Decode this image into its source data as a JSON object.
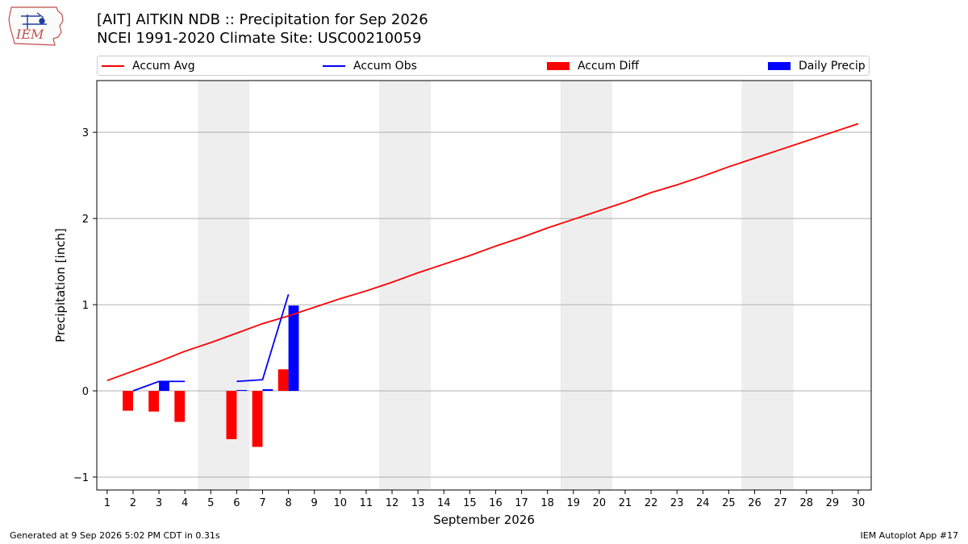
{
  "header": {
    "logo_text": "IEM",
    "title_line1": "[AIT] AITKIN NDB :: Precipitation for Sep 2026",
    "title_line2": "NCEI 1991-2020 Climate Site: USC00210059"
  },
  "footer": {
    "left": "Generated at 9 Sep 2026 5:02 PM CDT in 0.31s",
    "right": "IEM Autoplot App #17"
  },
  "colors": {
    "avg": "#ff0000",
    "obs": "#0000ff",
    "diff": "#ff0000",
    "daily": "#0000ff",
    "weekend_shade": "#eeeeee",
    "grid": "#b0b0b0"
  },
  "chart_data": {
    "type": "bar",
    "xlabel": "September 2026",
    "ylabel": "Precipitation [inch]",
    "xlim": [
      0.6,
      30.5
    ],
    "ylim": [
      -1.15,
      3.6
    ],
    "yticks": [
      -1,
      0,
      1,
      2,
      3
    ],
    "grid": "horizontal",
    "legend_position": "top",
    "days": [
      1,
      2,
      3,
      4,
      5,
      6,
      7,
      8,
      9,
      10,
      11,
      12,
      13,
      14,
      15,
      16,
      17,
      18,
      19,
      20,
      21,
      22,
      23,
      24,
      25,
      26,
      27,
      28,
      29,
      30
    ],
    "weekend_ranges": [
      [
        4.5,
        6.5
      ],
      [
        11.5,
        13.5
      ],
      [
        18.5,
        20.5
      ],
      [
        25.5,
        27.5
      ]
    ],
    "series": [
      {
        "name": "Accum Avg",
        "kind": "line",
        "color": "#ff0000",
        "x": [
          1,
          2,
          3,
          4,
          5,
          6,
          7,
          8,
          9,
          10,
          11,
          12,
          13,
          14,
          15,
          16,
          17,
          18,
          19,
          20,
          21,
          22,
          23,
          24,
          25,
          26,
          27,
          28,
          29,
          30
        ],
        "values": [
          0.12,
          0.23,
          0.34,
          0.46,
          0.56,
          0.67,
          0.78,
          0.87,
          0.97,
          1.07,
          1.16,
          1.26,
          1.37,
          1.47,
          1.57,
          1.68,
          1.78,
          1.89,
          1.99,
          2.09,
          2.19,
          2.3,
          2.39,
          2.49,
          2.6,
          2.7,
          2.8,
          2.9,
          3.0,
          3.1
        ]
      },
      {
        "name": "Accum Obs",
        "kind": "line",
        "color": "#0000ff",
        "segments": [
          {
            "x": [
              2,
              3,
              4
            ],
            "values": [
              0.0,
              0.11,
              0.11
            ]
          },
          {
            "x": [
              6,
              7,
              8
            ],
            "values": [
              0.11,
              0.13,
              1.12
            ]
          }
        ]
      },
      {
        "name": "Accum Diff",
        "kind": "bar",
        "color": "#ff0000",
        "offset": -0.2,
        "x": [
          2,
          3,
          4,
          6,
          7,
          8
        ],
        "values": [
          -0.23,
          -0.24,
          -0.36,
          -0.56,
          -0.65,
          0.25
        ]
      },
      {
        "name": "Daily Precip",
        "kind": "bar",
        "color": "#0000ff",
        "offset": 0.2,
        "x": [
          3,
          6,
          7,
          8
        ],
        "values": [
          0.11,
          0.01,
          0.02,
          0.99
        ]
      }
    ]
  }
}
